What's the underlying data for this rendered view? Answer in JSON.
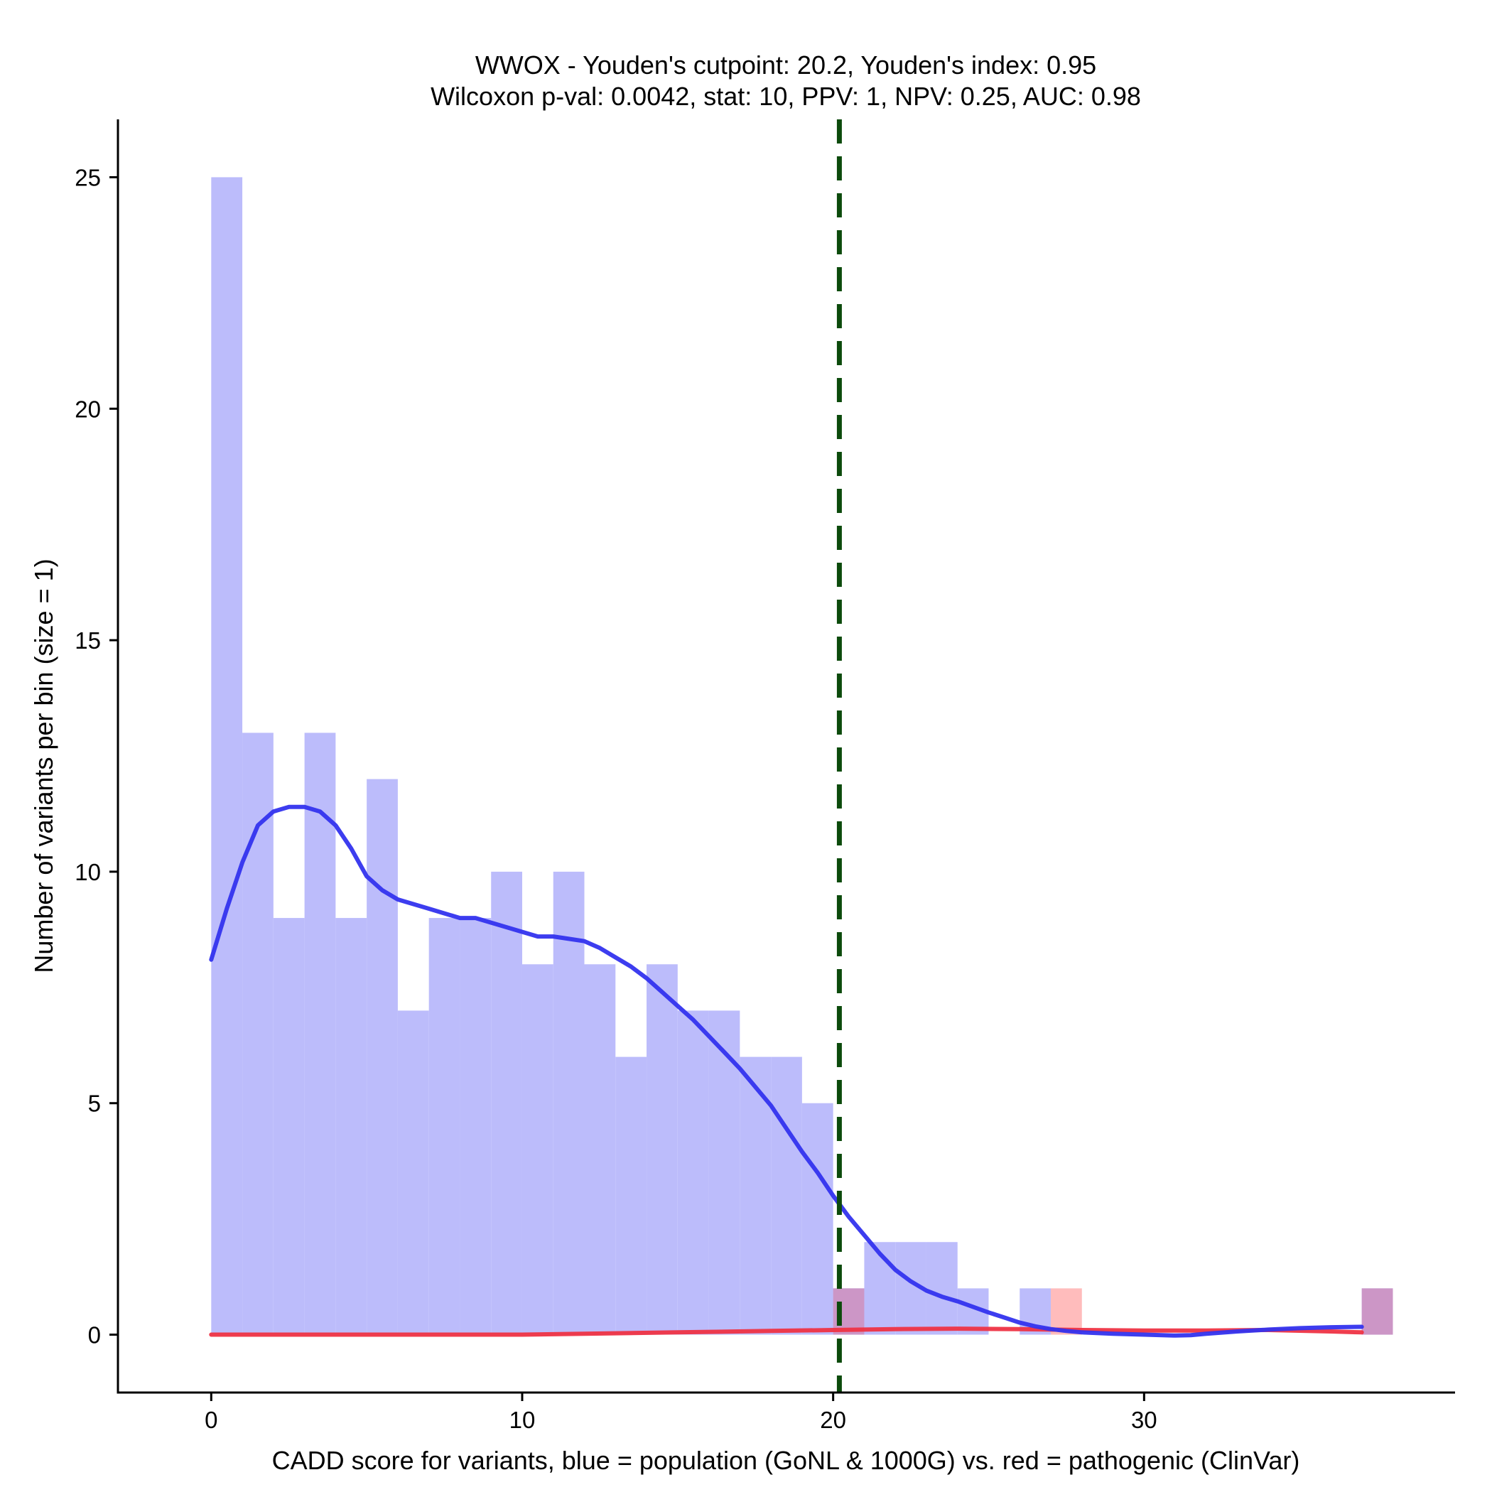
{
  "colors": {
    "population_bar": "#bcbcfb",
    "pathogenic_bar": "#ffbcbc",
    "overlap_bar": "#cc96c6",
    "population_line": "#3333ee",
    "pathogenic_line": "#ee3344",
    "cutpoint_line": "#0c4a0c",
    "axis": "#000000"
  },
  "chart_data": {
    "type": "histogram",
    "title_line1": "WWOX - Youden's cutpoint: 20.2, Youden's index: 0.95",
    "title_line2": "Wilcoxon p-val: 0.0042, stat: 10, PPV: 1, NPV: 0.25, AUC: 0.98",
    "xlabel": "CADD score for variants, blue = population (GoNL & 1000G) vs. red = pathogenic (ClinVar)",
    "ylabel": "Number of variants per bin (size = 1)",
    "xlim": [
      -3,
      40
    ],
    "ylim": [
      -1.25,
      26.25
    ],
    "x_ticks": [
      0,
      10,
      20,
      30
    ],
    "y_ticks": [
      0,
      5,
      10,
      15,
      20,
      25
    ],
    "bin_width": 1,
    "cutpoint": 20.2,
    "grid": false,
    "series": [
      {
        "name": "population (GoNL & 1000G)",
        "bins": [
          {
            "x0": 0,
            "count": 25
          },
          {
            "x0": 1,
            "count": 13
          },
          {
            "x0": 2,
            "count": 9
          },
          {
            "x0": 3,
            "count": 13
          },
          {
            "x0": 4,
            "count": 9
          },
          {
            "x0": 5,
            "count": 12
          },
          {
            "x0": 6,
            "count": 7
          },
          {
            "x0": 7,
            "count": 9
          },
          {
            "x0": 8,
            "count": 9
          },
          {
            "x0": 9,
            "count": 10
          },
          {
            "x0": 10,
            "count": 8
          },
          {
            "x0": 11,
            "count": 10
          },
          {
            "x0": 12,
            "count": 8
          },
          {
            "x0": 13,
            "count": 6
          },
          {
            "x0": 14,
            "count": 8
          },
          {
            "x0": 15,
            "count": 7
          },
          {
            "x0": 16,
            "count": 7
          },
          {
            "x0": 17,
            "count": 6
          },
          {
            "x0": 18,
            "count": 6
          },
          {
            "x0": 19,
            "count": 5
          },
          {
            "x0": 20,
            "count": 1
          },
          {
            "x0": 21,
            "count": 2
          },
          {
            "x0": 22,
            "count": 2
          },
          {
            "x0": 23,
            "count": 2
          },
          {
            "x0": 24,
            "count": 1
          },
          {
            "x0": 26,
            "count": 1
          },
          {
            "x0": 37,
            "count": 1
          }
        ],
        "density": [
          [
            0,
            8.1
          ],
          [
            0.5,
            9.2
          ],
          [
            1,
            10.2
          ],
          [
            1.5,
            11.0
          ],
          [
            2,
            11.3
          ],
          [
            2.5,
            11.4
          ],
          [
            3,
            11.4
          ],
          [
            3.5,
            11.3
          ],
          [
            4,
            11.0
          ],
          [
            4.5,
            10.5
          ],
          [
            5,
            9.9
          ],
          [
            5.5,
            9.6
          ],
          [
            6,
            9.4
          ],
          [
            6.5,
            9.3
          ],
          [
            7,
            9.2
          ],
          [
            7.5,
            9.1
          ],
          [
            8,
            9.0
          ],
          [
            8.5,
            9.0
          ],
          [
            9,
            8.9
          ],
          [
            9.5,
            8.8
          ],
          [
            10,
            8.7
          ],
          [
            10.5,
            8.6
          ],
          [
            11,
            8.6
          ],
          [
            11.5,
            8.55
          ],
          [
            12,
            8.5
          ],
          [
            12.5,
            8.35
          ],
          [
            13,
            8.15
          ],
          [
            13.5,
            7.95
          ],
          [
            14,
            7.7
          ],
          [
            14.5,
            7.4
          ],
          [
            15,
            7.1
          ],
          [
            15.5,
            6.8
          ],
          [
            16,
            6.45
          ],
          [
            16.5,
            6.1
          ],
          [
            17,
            5.75
          ],
          [
            17.5,
            5.35
          ],
          [
            18,
            4.95
          ],
          [
            18.5,
            4.45
          ],
          [
            19,
            3.95
          ],
          [
            19.5,
            3.5
          ],
          [
            20,
            3.0
          ],
          [
            20.5,
            2.55
          ],
          [
            21,
            2.15
          ],
          [
            21.5,
            1.75
          ],
          [
            22,
            1.4
          ],
          [
            22.5,
            1.15
          ],
          [
            23,
            0.95
          ],
          [
            23.5,
            0.82
          ],
          [
            24,
            0.72
          ],
          [
            24.5,
            0.6
          ],
          [
            25,
            0.48
          ],
          [
            25.5,
            0.37
          ],
          [
            26,
            0.26
          ],
          [
            26.5,
            0.18
          ],
          [
            27,
            0.12
          ],
          [
            27.5,
            0.08
          ],
          [
            28,
            0.05
          ],
          [
            29,
            0.02
          ],
          [
            30,
            0.0
          ],
          [
            31,
            -0.02
          ],
          [
            31.5,
            -0.01
          ],
          [
            32,
            0.02
          ],
          [
            33,
            0.07
          ],
          [
            34,
            0.11
          ],
          [
            35,
            0.14
          ],
          [
            36,
            0.16
          ],
          [
            37,
            0.17
          ]
        ]
      },
      {
        "name": "pathogenic (ClinVar)",
        "bins": [
          {
            "x0": 20,
            "count": 1
          },
          {
            "x0": 27,
            "count": 1
          },
          {
            "x0": 37,
            "count": 1
          }
        ],
        "density": [
          [
            0,
            0.0
          ],
          [
            5,
            0.0
          ],
          [
            10,
            0.0
          ],
          [
            12,
            0.02
          ],
          [
            15,
            0.05
          ],
          [
            18,
            0.08
          ],
          [
            20,
            0.1
          ],
          [
            22,
            0.12
          ],
          [
            24,
            0.13
          ],
          [
            26,
            0.12
          ],
          [
            28,
            0.1
          ],
          [
            30,
            0.09
          ],
          [
            32,
            0.09
          ],
          [
            34,
            0.1
          ],
          [
            36,
            0.07
          ],
          [
            37,
            0.05
          ]
        ]
      }
    ]
  }
}
